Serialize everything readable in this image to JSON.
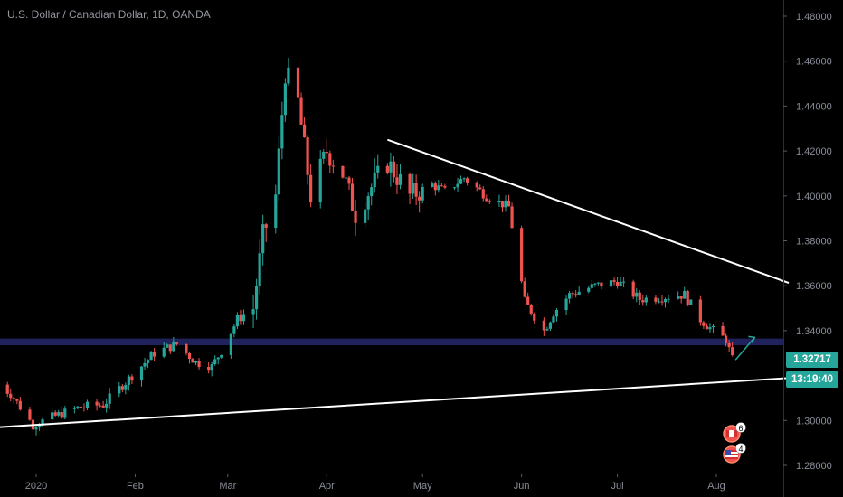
{
  "header": {
    "title": "U.S. Dollar / Canadian Dollar, 1D, OANDA"
  },
  "price_axis": {
    "last_price": "1.32717",
    "countdown": "13:19:40"
  },
  "events": {
    "ca_count": "6",
    "us_count": "4"
  },
  "colors": {
    "up": "#26a69a",
    "down": "#ef5350",
    "trendline": "#ffffff",
    "zone": "#2a2e7a",
    "arrow": "#26a69a"
  },
  "chart_data": {
    "type": "candlestick",
    "title": "U.S. Dollar / Canadian Dollar, 1D, OANDA",
    "x_ticks": [
      "2020",
      "Feb",
      "Mar",
      "Apr",
      "May",
      "Jun",
      "Jul",
      "Aug"
    ],
    "y_ticks": [
      "1.48000",
      "1.46000",
      "1.44000",
      "1.42000",
      "1.40000",
      "1.38000",
      "1.36000",
      "1.34000",
      "1.30000",
      "1.28000"
    ],
    "ylim": [
      1.275,
      1.485
    ],
    "grid": false,
    "waypoints": [
      [
        "2019-12-20",
        1.316
      ],
      [
        "2019-12-24",
        1.312
      ],
      [
        "2019-12-31",
        1.298
      ],
      [
        "2020-01-07",
        1.302
      ],
      [
        "2020-01-15",
        1.306
      ],
      [
        "2020-01-22",
        1.307
      ],
      [
        "2020-01-31",
        1.32
      ],
      [
        "2020-02-07",
        1.33
      ],
      [
        "2020-02-14",
        1.334
      ],
      [
        "2020-02-20",
        1.326
      ],
      [
        "2020-02-25",
        1.324
      ],
      [
        "2020-02-28",
        1.331
      ],
      [
        "2020-03-04",
        1.345
      ],
      [
        "2020-03-09",
        1.35
      ],
      [
        "2020-03-12",
        1.382
      ],
      [
        "2020-03-16",
        1.4
      ],
      [
        "2020-03-19",
        1.455
      ],
      [
        "2020-03-23",
        1.442
      ],
      [
        "2020-03-27",
        1.4
      ],
      [
        "2020-04-01",
        1.42
      ],
      [
        "2020-04-06",
        1.41
      ],
      [
        "2020-04-10",
        1.392
      ],
      [
        "2020-04-15",
        1.404
      ],
      [
        "2020-04-20",
        1.415
      ],
      [
        "2020-04-27",
        1.4
      ],
      [
        "2020-05-04",
        1.405
      ],
      [
        "2020-05-08",
        1.402
      ],
      [
        "2020-05-14",
        1.408
      ],
      [
        "2020-05-21",
        1.4
      ],
      [
        "2020-05-28",
        1.395
      ],
      [
        "2020-06-02",
        1.353
      ],
      [
        "2020-06-08",
        1.34
      ],
      [
        "2020-06-11",
        1.348
      ],
      [
        "2020-06-16",
        1.356
      ],
      [
        "2020-06-24",
        1.36
      ],
      [
        "2020-07-01",
        1.362
      ],
      [
        "2020-07-08",
        1.354
      ],
      [
        "2020-07-15",
        1.355
      ],
      [
        "2020-07-22",
        1.356
      ],
      [
        "2020-07-27",
        1.345
      ],
      [
        "2020-07-31",
        1.34
      ],
      [
        "2020-08-04",
        1.336
      ],
      [
        "2020-08-06",
        1.327
      ]
    ],
    "trendlines": [
      {
        "name": "upper-trendline",
        "from": [
          "2020-04-20",
          1.425
        ],
        "to": [
          "2020-09-05",
          1.355
        ]
      },
      {
        "name": "lower-trendline",
        "from": [
          "2019-12-20",
          1.297
        ],
        "to": [
          "2020-09-05",
          1.32
        ]
      }
    ],
    "zone": {
      "from": 1.3335,
      "to": 1.3365
    },
    "arrow": {
      "from": [
        "2020-08-07",
        1.327
      ],
      "to": [
        "2020-08-13",
        1.337
      ]
    },
    "last_price": 1.32717
  }
}
